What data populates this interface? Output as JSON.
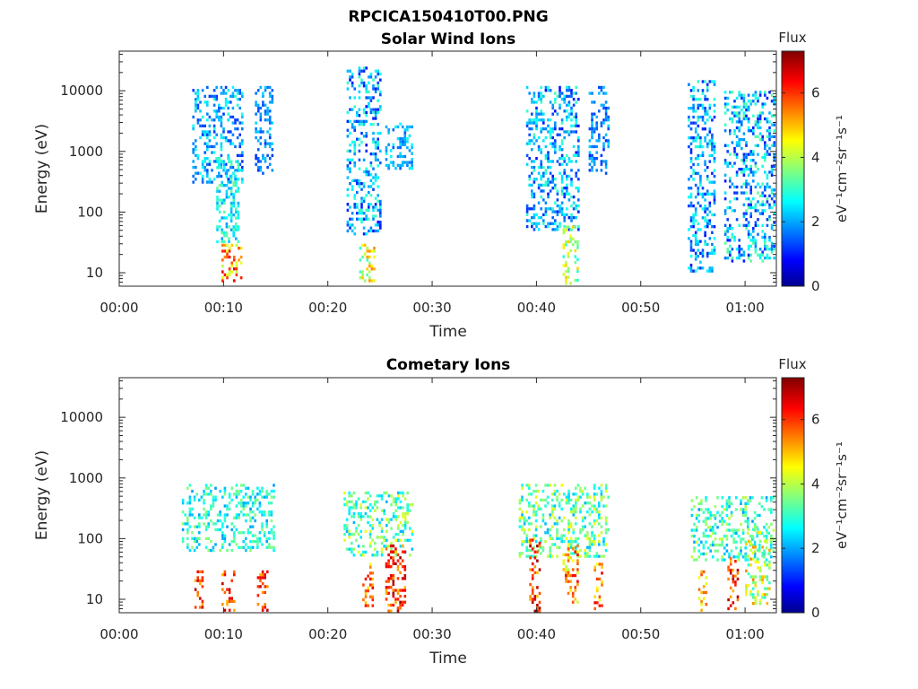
{
  "figure": {
    "title": "RPCICA150410T00.PNG"
  },
  "panels": [
    {
      "title": "Solar Wind Ions",
      "xlabel": "Time",
      "ylabel": "Energy (eV)",
      "colorbar_title": "Flux",
      "colorbar_label": "eV⁻¹cm⁻²sr⁻¹s⁻¹"
    },
    {
      "title": "Cometary Ions",
      "xlabel": "Time",
      "ylabel": "Energy (eV)",
      "colorbar_title": "Flux",
      "colorbar_label": "eV⁻¹cm⁻²sr⁻¹s⁻¹"
    }
  ],
  "chart_data": [
    {
      "type": "heatmap",
      "title": "Solar Wind Ions",
      "xlabel": "Time",
      "ylabel": "Energy (eV)",
      "x_unit": "minutes",
      "xlim": [
        0,
        63
      ],
      "x_ticks": [
        0,
        10,
        20,
        30,
        40,
        50,
        60
      ],
      "x_tick_labels": [
        "00:00",
        "00:10",
        "00:20",
        "00:30",
        "00:40",
        "00:50",
        "01:00"
      ],
      "y_scale": "log",
      "ylim": [
        6,
        45000
      ],
      "y_ticks": [
        10,
        100,
        1000,
        10000
      ],
      "y_tick_labels": [
        "10",
        "100",
        "1000",
        "10000"
      ],
      "colorbar": {
        "title": "Flux",
        "label": "eV⁻¹cm⁻²sr⁻¹s⁻¹",
        "range": [
          0,
          7.3
        ],
        "ticks": [
          0,
          2,
          4,
          6
        ],
        "colormap": "jet"
      },
      "clusters": [
        {
          "t": [
            7.0,
            12.0
          ],
          "e": [
            300,
            12000
          ],
          "v": [
            1.2,
            3.0
          ]
        },
        {
          "t": [
            9.3,
            11.6
          ],
          "e": [
            30,
            800
          ],
          "v": [
            2.0,
            3.5
          ]
        },
        {
          "t": [
            9.8,
            11.8
          ],
          "e": [
            6,
            30
          ],
          "v": [
            4.0,
            6.6
          ]
        },
        {
          "t": [
            13.0,
            14.8
          ],
          "e": [
            400,
            12000
          ],
          "v": [
            1.2,
            2.5
          ]
        },
        {
          "t": [
            21.8,
            25.2
          ],
          "e": [
            40,
            25000
          ],
          "v": [
            1.0,
            3.2
          ]
        },
        {
          "t": [
            23.0,
            24.5
          ],
          "e": [
            6,
            30
          ],
          "v": [
            3.0,
            5.5
          ]
        },
        {
          "t": [
            25.5,
            28.2
          ],
          "e": [
            500,
            3000
          ],
          "v": [
            1.5,
            2.8
          ]
        },
        {
          "t": [
            39.0,
            44.2
          ],
          "e": [
            50,
            12000
          ],
          "v": [
            1.0,
            3.3
          ]
        },
        {
          "t": [
            42.5,
            44.0
          ],
          "e": [
            6,
            60
          ],
          "v": [
            2.8,
            5.0
          ]
        },
        {
          "t": [
            45.0,
            47.0
          ],
          "e": [
            400,
            12000
          ],
          "v": [
            1.2,
            2.5
          ]
        },
        {
          "t": [
            54.5,
            57.2
          ],
          "e": [
            10,
            15000
          ],
          "v": [
            1.0,
            3.2
          ]
        },
        {
          "t": [
            58.0,
            63.0
          ],
          "e": [
            15,
            10000
          ],
          "v": [
            1.0,
            3.5
          ]
        }
      ]
    },
    {
      "type": "heatmap",
      "title": "Cometary Ions",
      "xlabel": "Time",
      "ylabel": "Energy (eV)",
      "x_unit": "minutes",
      "xlim": [
        0,
        63
      ],
      "x_ticks": [
        0,
        10,
        20,
        30,
        40,
        50,
        60
      ],
      "x_tick_labels": [
        "00:00",
        "00:10",
        "00:20",
        "00:30",
        "00:40",
        "00:50",
        "01:00"
      ],
      "y_scale": "log",
      "ylim": [
        6,
        45000
      ],
      "y_ticks": [
        10,
        100,
        1000,
        10000
      ],
      "y_tick_labels": [
        "10",
        "100",
        "1000",
        "10000"
      ],
      "colorbar": {
        "title": "Flux",
        "label": "eV⁻¹cm⁻²sr⁻¹s⁻¹",
        "range": [
          0,
          7.3
        ],
        "ticks": [
          0,
          2,
          4,
          6
        ],
        "colormap": "jet"
      },
      "clusters": [
        {
          "t": [
            6.0,
            15.0
          ],
          "e": [
            60,
            800
          ],
          "v": [
            2.0,
            3.8
          ]
        },
        {
          "t": [
            7.2,
            8.2
          ],
          "e": [
            6,
            30
          ],
          "v": [
            5.0,
            7.0
          ]
        },
        {
          "t": [
            9.8,
            11.2
          ],
          "e": [
            6,
            30
          ],
          "v": [
            5.0,
            7.0
          ]
        },
        {
          "t": [
            13.2,
            14.3
          ],
          "e": [
            6,
            30
          ],
          "v": [
            5.0,
            7.0
          ]
        },
        {
          "t": [
            21.5,
            28.3
          ],
          "e": [
            50,
            600
          ],
          "v": [
            2.2,
            4.5
          ]
        },
        {
          "t": [
            23.3,
            24.5
          ],
          "e": [
            6,
            40
          ],
          "v": [
            4.5,
            6.5
          ]
        },
        {
          "t": [
            25.5,
            27.5
          ],
          "e": [
            6,
            80
          ],
          "v": [
            5.0,
            7.2
          ]
        },
        {
          "t": [
            38.3,
            47.0
          ],
          "e": [
            50,
            800
          ],
          "v": [
            2.2,
            4.5
          ]
        },
        {
          "t": [
            39.3,
            40.5
          ],
          "e": [
            6,
            100
          ],
          "v": [
            5.0,
            7.2
          ]
        },
        {
          "t": [
            42.5,
            44.0
          ],
          "e": [
            8,
            80
          ],
          "v": [
            4.0,
            6.5
          ]
        },
        {
          "t": [
            45.5,
            46.5
          ],
          "e": [
            6,
            40
          ],
          "v": [
            4.5,
            6.5
          ]
        },
        {
          "t": [
            54.8,
            63.0
          ],
          "e": [
            40,
            500
          ],
          "v": [
            2.0,
            4.2
          ]
        },
        {
          "t": [
            55.5,
            56.5
          ],
          "e": [
            6,
            30
          ],
          "v": [
            4.0,
            6.0
          ]
        },
        {
          "t": [
            58.3,
            59.5
          ],
          "e": [
            6,
            50
          ],
          "v": [
            5.0,
            7.0
          ]
        },
        {
          "t": [
            60.0,
            62.5
          ],
          "e": [
            8,
            150
          ],
          "v": [
            3.0,
            5.5
          ]
        }
      ]
    }
  ]
}
